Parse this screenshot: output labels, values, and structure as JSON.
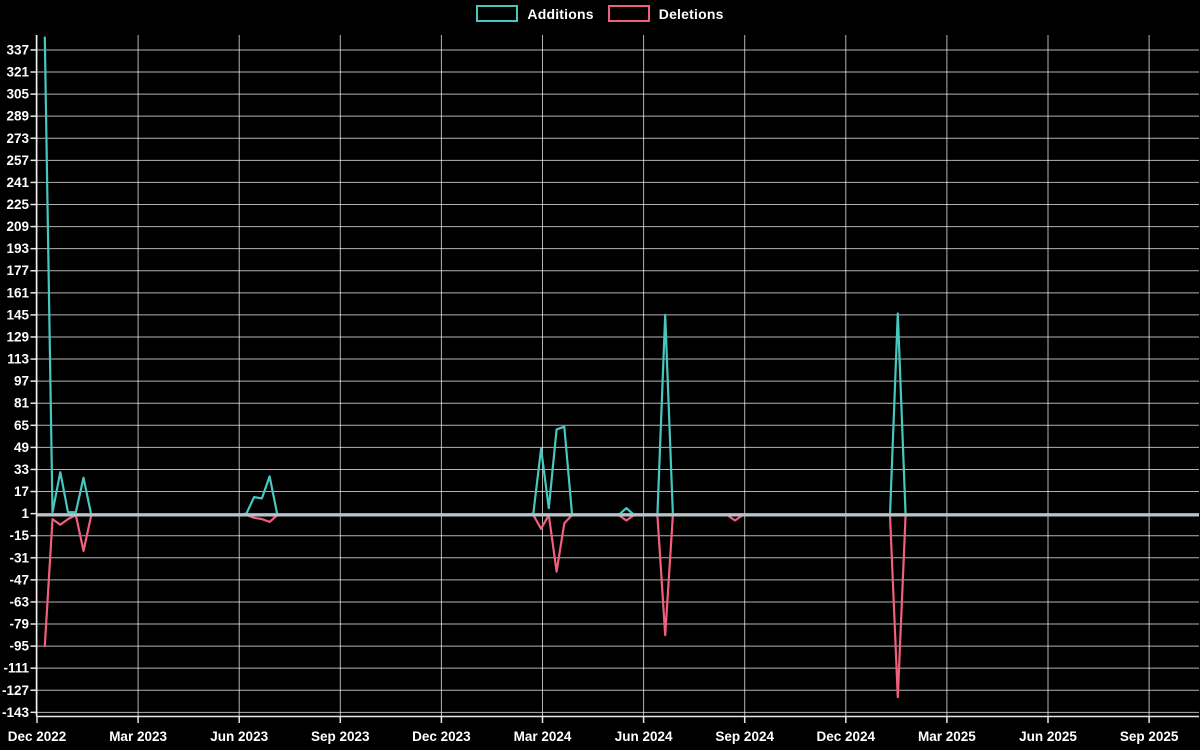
{
  "legend": {
    "items": [
      {
        "label": "Additions",
        "color": "#46c8be"
      },
      {
        "label": "Deletions",
        "color": "#f05f7d"
      }
    ]
  },
  "chart_data": {
    "type": "line",
    "title": "",
    "background_color": "#000000",
    "grid": "on",
    "legend_position": "top-center",
    "x_axis": {
      "kind": "time-weekly",
      "tick_labels": [
        "Dec 2022",
        "Mar 2023",
        "Jun 2023",
        "Sep 2023",
        "Dec 2023",
        "Mar 2024",
        "Jun 2024",
        "Sep 2024",
        "Dec 2024",
        "Mar 2025",
        "Jun 2025",
        "Sep 2025"
      ],
      "weeks_per_tick": 13,
      "total_weeks": 149
    },
    "y_axis": {
      "tick_values": [
        337,
        321,
        305,
        289,
        273,
        257,
        241,
        225,
        209,
        193,
        177,
        161,
        145,
        129,
        113,
        97,
        81,
        65,
        49,
        33,
        17,
        1,
        -15,
        -31,
        -47,
        -63,
        -79,
        -95,
        -111,
        -127,
        -143
      ],
      "tick_step": 16,
      "range_estimate": [
        -148,
        348
      ],
      "zeroline_color": "#b8c4cd",
      "zeroline": true
    },
    "series": [
      {
        "name": "Additions",
        "color": "#46c8be",
        "baseline_value": 0,
        "first_week": 1,
        "nonzero_points_by_week": {
          "1": 346,
          "2": 2,
          "3": 31,
          "4": 2,
          "5": 2,
          "6": 27,
          "27": 1,
          "28": 13,
          "29": 12,
          "30": 28,
          "64": 1,
          "65": 48,
          "66": 5,
          "67": 62,
          "68": 64,
          "76": 5,
          "81": 145,
          "111": 146
        }
      },
      {
        "name": "Deletions",
        "color": "#f05f7d",
        "baseline_value": 0,
        "first_week": 1,
        "nonzero_points_by_week": {
          "1": -95,
          "2": -3,
          "3": -7,
          "4": -3,
          "6": -26,
          "28": -2,
          "29": -3,
          "30": -5,
          "65": -10,
          "67": -41,
          "68": -6,
          "76": -4,
          "81": -87,
          "90": -4,
          "111": -132
        }
      }
    ]
  }
}
